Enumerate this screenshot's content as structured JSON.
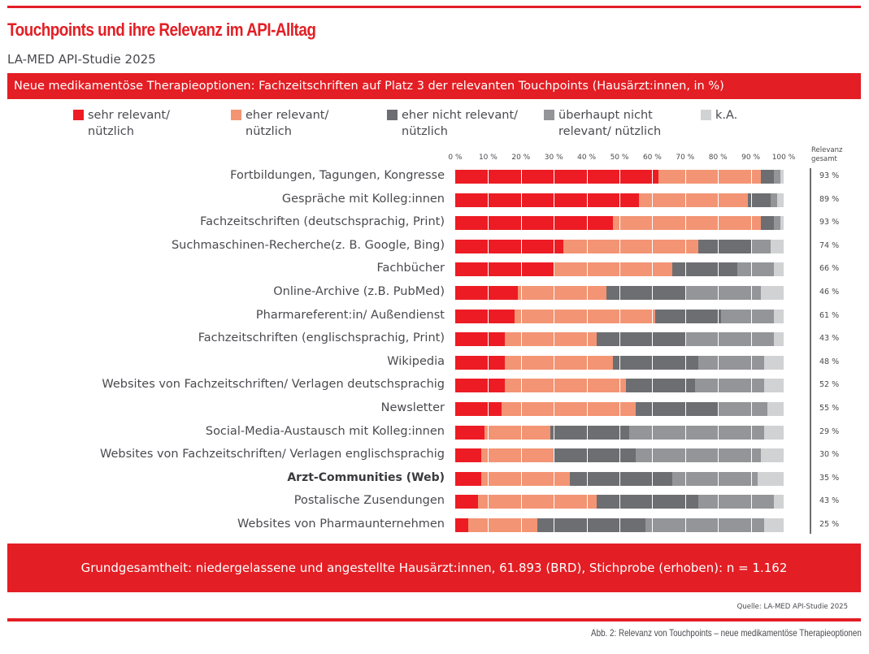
{
  "header": {
    "title": "Touchpoints und ihre Relevanz im API-Alltag",
    "subtitle": "LA-MED API-Studie 2025",
    "banner": "Neue medikamentöse Therapieoptionen: Fachzeitschriften auf Platz 3 der relevanten Touchpoints (Hausärzt:innen, in %)"
  },
  "colors": {
    "brand_red": "#e31e24",
    "sehr_relevant": "#ed1c24",
    "eher_relevant": "#f39474",
    "eher_nicht_relevant": "#6d6e71",
    "ueberhaupt_nicht": "#939598",
    "ka": "#d1d2d4"
  },
  "chart_data": {
    "type": "bar",
    "orientation": "horizontal",
    "stacked": true,
    "title": "Neue medikamentöse Therapieoptionen: Fachzeitschriften auf Platz 3 der relevanten Touchpoints (Hausärzt:innen, in %)",
    "xlabel": "",
    "ylabel": "",
    "xlim": [
      0,
      100
    ],
    "x_ticks": [
      "0 %",
      "10 %",
      "20 %",
      "30 %",
      "40 %",
      "50 %",
      "60 %",
      "70 %",
      "80 %",
      "90 %",
      "100 %"
    ],
    "legend_position": "top",
    "legend": [
      {
        "line1": "sehr relevant/",
        "line2": "nützlich"
      },
      {
        "line1": "eher relevant/",
        "line2": "nützlich"
      },
      {
        "line1": "eher nicht relevant/",
        "line2": "nützlich"
      },
      {
        "line1": "überhaupt nicht",
        "line2": "relevant/ nützlich"
      },
      {
        "line1": "k.A.",
        "line2": ""
      }
    ],
    "relevance_header": [
      "Relevanz",
      "gesamt"
    ],
    "categories": [
      "Fortbildungen, Tagungen, Kongresse",
      "Gespräche mit Kolleg:innen",
      "Fachzeitschriften (deutschsprachig, Print)",
      "Suchmaschinen-Recherche(z. B. Google, Bing)",
      "Fachbücher",
      "Online-Archive (z.B. PubMed)",
      "Pharmareferent:in/ Außendienst",
      "Fachzeitschriften (englischsprachig, Print)",
      "Wikipedia",
      "Websites von Fachzeitschriften/ Verlagen deutschsprachig",
      "Newsletter",
      "Social-Media-Austausch mit Kolleg:innen",
      "Websites von Fachzeitschriften/ Verlagen englischsprachig",
      "Arzt-Communities (Web)",
      "Postalische Zusendungen",
      "Websites von Pharmaunternehmen"
    ],
    "series": [
      {
        "name": "sehr relevant/ nützlich",
        "values": [
          62,
          56,
          48,
          33,
          30,
          19,
          18,
          15,
          15,
          15,
          14,
          9,
          8,
          8,
          7,
          4
        ]
      },
      {
        "name": "eher relevant/ nützlich",
        "values": [
          31,
          33,
          45,
          41,
          36,
          27,
          43,
          28,
          33,
          37,
          41,
          20,
          22,
          27,
          36,
          21
        ]
      },
      {
        "name": "eher nicht relevant/ nützlich",
        "values": [
          4,
          7,
          4,
          16,
          20,
          24,
          20,
          27,
          26,
          21,
          25,
          24,
          25,
          31,
          31,
          33
        ]
      },
      {
        "name": "überhaupt nicht relevant/ nützlich",
        "values": [
          2,
          2,
          2,
          6,
          11,
          23,
          16,
          27,
          20,
          21,
          15,
          41,
          38,
          26,
          23,
          36
        ]
      },
      {
        "name": "k.A.",
        "values": [
          1,
          2,
          1,
          4,
          3,
          7,
          3,
          3,
          6,
          6,
          5,
          6,
          7,
          8,
          3,
          6
        ]
      }
    ],
    "relevance_total": [
      "93 %",
      "89 %",
      "93 %",
      "74 %",
      "66 %",
      "46 %",
      "61 %",
      "43 %",
      "48 %",
      "52 %",
      "55 %",
      "29 %",
      "30 %",
      "35 %",
      "43 %",
      "25 %"
    ],
    "bold_categories": [
      "Arzt-Communities (Web)"
    ]
  },
  "footer": {
    "population": "Grundgesamtheit: niedergelassene und angestellte Hausärzt:innen, 61.893 (BRD), Stichprobe (erhoben): n = 1.162",
    "source": "Quelle: LA-MED API-Studie 2025",
    "caption": "Abb. 2: Relevanz von Touchpoints – neue medikamentöse Therapieoptionen"
  }
}
